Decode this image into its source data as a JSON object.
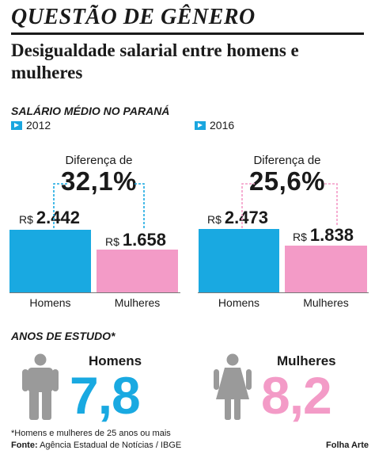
{
  "header": {
    "kicker": "QUESTÃO DE GÊNERO",
    "headline": "Desigualdade salarial entre homens e mulheres"
  },
  "salary": {
    "section_title": "SALÁRIO MÉDIO NO PARANÁ",
    "currency": "R$",
    "diff_label": "Diferença de",
    "panels": [
      {
        "year": "2012",
        "difference": "32,1%",
        "men_value_text": "2.442",
        "women_value_text": "1.658"
      },
      {
        "year": "2016",
        "difference": "25,6%",
        "men_value_text": "2.473",
        "women_value_text": "1.838"
      }
    ],
    "categories": [
      "Homens",
      "Mulheres"
    ]
  },
  "chart_data": [
    {
      "type": "bar",
      "title": "2012",
      "categories": [
        "Homens",
        "Mulheres"
      ],
      "values": [
        2442,
        1658
      ],
      "colors": [
        "#19a9e1",
        "#f39bc7"
      ]
    },
    {
      "type": "bar",
      "title": "2016",
      "categories": [
        "Homens",
        "Mulheres"
      ],
      "values": [
        2473,
        1838
      ],
      "colors": [
        "#19a9e1",
        "#f39bc7"
      ]
    }
  ],
  "education": {
    "section_title": "ANOS DE ESTUDO*",
    "men_label": "Homens",
    "men_value": "7,8",
    "women_label": "Mulheres",
    "women_value": "8,2"
  },
  "footer": {
    "footnote": "*Homens e mulheres de 25 anos ou mais",
    "source_label": "Fonte:",
    "source_text": "Agência Estadual de Notícias / IBGE",
    "credit": "Folha Arte"
  },
  "colors": {
    "men": "#19a9e1",
    "women": "#f39bc7",
    "person_icon": "#9a9a9a",
    "text": "#1a1a1a"
  },
  "icons": [
    "play-icon",
    "male-person-icon",
    "female-person-icon"
  ]
}
